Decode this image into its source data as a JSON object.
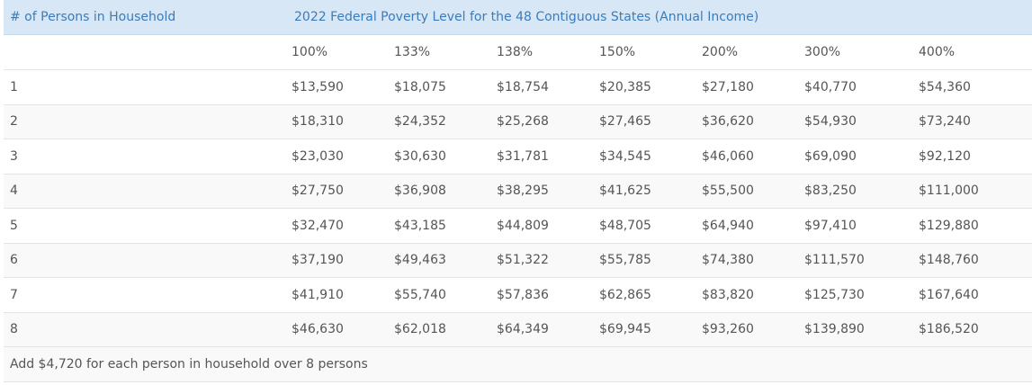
{
  "table": {
    "corner_header": "# of Persons in Household",
    "title_header": "2022 Federal Poverty Level for the 48 Contiguous States (Annual Income)",
    "percent_headers": [
      "100%",
      "133%",
      "138%",
      "150%",
      "200%",
      "300%",
      "400%"
    ],
    "rows": [
      {
        "persons": "1",
        "values": [
          "$13,590",
          "$18,075",
          "$18,754",
          "$20,385",
          "$27,180",
          "$40,770",
          "$54,360"
        ]
      },
      {
        "persons": "2",
        "values": [
          "$18,310",
          "$24,352",
          "$25,268",
          "$27,465",
          "$36,620",
          "$54,930",
          "$73,240"
        ]
      },
      {
        "persons": "3",
        "values": [
          "$23,030",
          "$30,630",
          "$31,781",
          "$34,545",
          "$46,060",
          "$69,090",
          "$92,120"
        ]
      },
      {
        "persons": "4",
        "values": [
          "$27,750",
          "$36,908",
          "$38,295",
          "$41,625",
          "$55,500",
          "$83,250",
          "$111,000"
        ]
      },
      {
        "persons": "5",
        "values": [
          "$32,470",
          "$43,185",
          "$44,809",
          "$48,705",
          "$64,940",
          "$97,410",
          "$129,880"
        ]
      },
      {
        "persons": "6",
        "values": [
          "$37,190",
          "$49,463",
          "$51,322",
          "$55,785",
          "$74,380",
          "$111,570",
          "$148,760"
        ]
      },
      {
        "persons": "7",
        "values": [
          "$41,910",
          "$55,740",
          "$57,836",
          "$62,865",
          "$83,820",
          "$125,730",
          "$167,640"
        ]
      },
      {
        "persons": "8",
        "values": [
          "$46,630",
          "$62,018",
          "$64,349",
          "$69,945",
          "$93,260",
          "$139,890",
          "$186,520"
        ]
      }
    ],
    "footer_note": "Add $4,720 for each person in household over 8 persons"
  },
  "colors": {
    "header_background": "#d7e7f5",
    "header_text": "#3a7cbc",
    "body_text": "#555555",
    "row_divider": "#e4e4e4",
    "alt_row_background": "#f9f9f9"
  }
}
